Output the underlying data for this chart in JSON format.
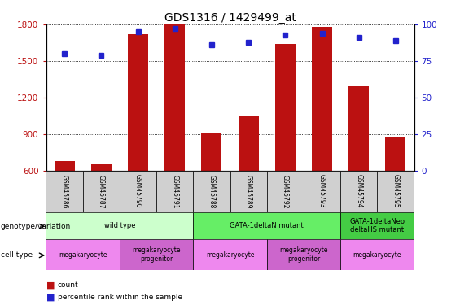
{
  "title": "GDS1316 / 1429499_at",
  "samples": [
    "GSM45786",
    "GSM45787",
    "GSM45790",
    "GSM45791",
    "GSM45788",
    "GSM45789",
    "GSM45792",
    "GSM45793",
    "GSM45794",
    "GSM45795"
  ],
  "counts": [
    680,
    655,
    1720,
    1800,
    910,
    1050,
    1640,
    1780,
    1290,
    880
  ],
  "percentiles": [
    80,
    79,
    95,
    97,
    86,
    88,
    93,
    94,
    91,
    89
  ],
  "ylim_left": [
    600,
    1800
  ],
  "ylim_right": [
    0,
    100
  ],
  "yticks_left": [
    600,
    900,
    1200,
    1500,
    1800
  ],
  "yticks_right": [
    0,
    25,
    50,
    75,
    100
  ],
  "bar_color": "#BB1111",
  "dot_color": "#2222CC",
  "grid_color": "#000000",
  "left_tick_color": "#BB1111",
  "right_tick_color": "#2222CC",
  "genotype_groups": [
    {
      "label": "wild type",
      "start": 0,
      "end": 4,
      "color": "#ccffcc"
    },
    {
      "label": "GATA-1deltaN mutant",
      "start": 4,
      "end": 8,
      "color": "#66ee66"
    },
    {
      "label": "GATA-1deltaNeo\ndeltaHS mutant",
      "start": 8,
      "end": 10,
      "color": "#44cc44"
    }
  ],
  "celltype_groups": [
    {
      "label": "megakaryocyte",
      "start": 0,
      "end": 2,
      "color": "#ee88ee"
    },
    {
      "label": "megakaryocyte\nprogenitor",
      "start": 2,
      "end": 4,
      "color": "#cc66cc"
    },
    {
      "label": "megakaryocyte",
      "start": 4,
      "end": 6,
      "color": "#ee88ee"
    },
    {
      "label": "megakaryocyte\nprogenitor",
      "start": 6,
      "end": 8,
      "color": "#cc66cc"
    },
    {
      "label": "megakaryocyte",
      "start": 8,
      "end": 10,
      "color": "#ee88ee"
    }
  ],
  "legend_count_color": "#BB1111",
  "legend_dot_color": "#2222CC",
  "bar_width": 0.55,
  "fig_width": 5.65,
  "fig_height": 3.75,
  "fig_dpi": 100
}
